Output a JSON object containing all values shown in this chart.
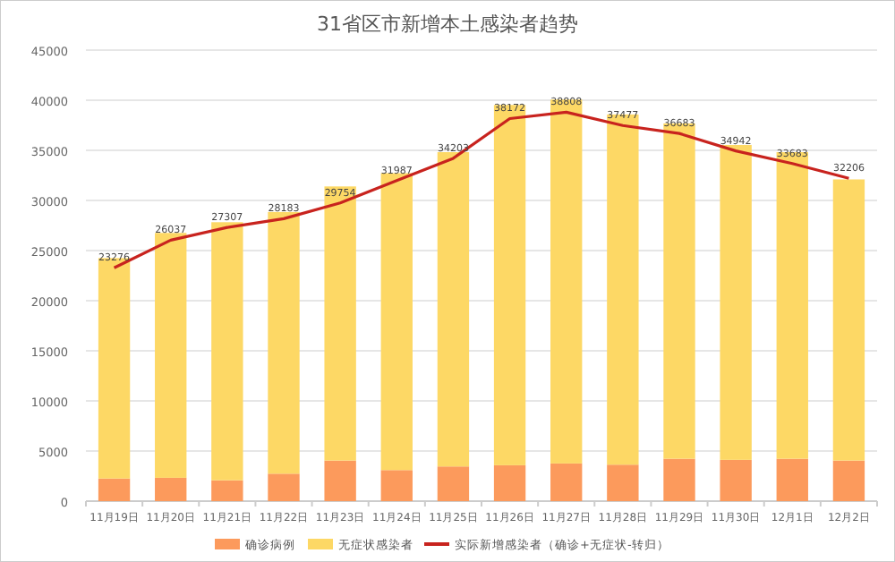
{
  "chart_data": {
    "type": "bar",
    "title": "31省区市新增本土感染者趋势",
    "categories": [
      "11月19日",
      "11月20日",
      "11月21日",
      "11月22日",
      "11月23日",
      "11月24日",
      "11月25日",
      "11月26日",
      "11月27日",
      "11月28日",
      "11月29日",
      "11月30日",
      "12月1日",
      "12月2日"
    ],
    "stacked": true,
    "series": [
      {
        "name": "确诊病例",
        "color": "#fc9a5c",
        "values": [
          2260,
          2330,
          2080,
          2740,
          4050,
          3100,
          3460,
          3580,
          3760,
          3640,
          4230,
          4120,
          4230,
          4050
        ]
      },
      {
        "name": "无症状感染者",
        "color": "#fdd865",
        "values": [
          21990,
          24430,
          25750,
          26110,
          27350,
          29620,
          31360,
          35950,
          36310,
          34940,
          33460,
          31420,
          30590,
          28050
        ]
      },
      {
        "name": "实际新增感染者（确诊+无症状-转归）",
        "type": "line",
        "color": "#c8231e",
        "values": [
          23276,
          26037,
          27307,
          28183,
          29754,
          31987,
          34203,
          38172,
          38808,
          37477,
          36683,
          34942,
          33683,
          32206
        ],
        "data_labels": true
      }
    ],
    "ylim": [
      0,
      45000
    ],
    "yticks": [
      0,
      5000,
      10000,
      15000,
      20000,
      25000,
      30000,
      35000,
      40000,
      45000
    ],
    "grid": "y",
    "legend": "bottom",
    "marker": "none",
    "line_style": "solid"
  }
}
